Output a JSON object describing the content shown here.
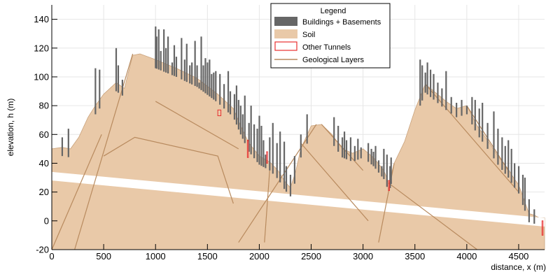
{
  "chart_data": {
    "type": "area",
    "xlabel": "distance, x (m)",
    "ylabel": "elevation, h (m)",
    "xlim": [
      0,
      4750
    ],
    "ylim": [
      -20,
      150
    ],
    "x_ticks": [
      0,
      500,
      1000,
      1500,
      2000,
      2500,
      3000,
      3500,
      4000,
      4500
    ],
    "y_ticks": [
      -20,
      0,
      20,
      40,
      60,
      80,
      100,
      120,
      140
    ],
    "legend": {
      "title": "Legend",
      "placement": "top-center",
      "entries": [
        "Buildings + Basements",
        "Soil",
        "Other Tunnels",
        "Geological Layers"
      ]
    },
    "colors": {
      "soil": "#e9c9a8",
      "geological_layers": "#b88a5e",
      "buildings": "#666666",
      "other_tunnels": "#e83030",
      "band": "#ffffff"
    },
    "series": [
      {
        "name": "Soil",
        "x": [
          0,
          100,
          180,
          260,
          350,
          420,
          500,
          620,
          700,
          780,
          850,
          1000,
          1200,
          1400,
          1600,
          1750,
          1820,
          1900,
          2000,
          2100,
          2180,
          2250,
          2300,
          2350,
          2400,
          2500,
          2600,
          2700,
          2800,
          2900,
          3000,
          3100,
          3200,
          3250,
          3300,
          3400,
          3500,
          3600,
          3700,
          3800,
          3900,
          4000,
          4100,
          4200,
          4300,
          4400,
          4450,
          4500,
          4550,
          4600,
          4650,
          4700,
          4750
        ],
        "y": [
          50,
          51,
          50,
          58,
          72,
          80,
          88,
          96,
          92,
          115,
          116,
          112,
          106,
          99,
          88,
          78,
          66,
          54,
          45,
          41,
          35,
          27,
          23,
          34,
          50,
          66,
          67,
          60,
          50,
          47,
          50,
          44,
          35,
          26,
          40,
          55,
          77,
          95,
          89,
          83,
          78,
          80,
          66,
          56,
          45,
          36,
          30,
          25,
          15,
          5,
          4,
          2,
          2
        ]
      },
      {
        "name": "Geological Layers",
        "lines": [
          {
            "x": [
              0,
              480
            ],
            "y": [
              -20,
              60
            ]
          },
          {
            "x": [
              220,
              780
            ],
            "y": [
              -20,
              116
            ]
          },
          {
            "x": [
              500,
              800,
              1600,
              1750
            ],
            "y": [
              45,
              58,
              45,
              12
            ]
          },
          {
            "x": [
              1000,
              1800
            ],
            "y": [
              83,
              50
            ]
          },
          {
            "x": [
              1800,
              2550
            ],
            "y": [
              -15,
              67
            ]
          },
          {
            "x": [
              2100,
              2050
            ],
            "y": [
              35,
              -15
            ]
          },
          {
            "x": [
              2400,
              3050
            ],
            "y": [
              54,
              0
            ]
          },
          {
            "x": [
              2600,
              3000
            ],
            "y": [
              67,
              35
            ]
          },
          {
            "x": [
              3300,
              3150
            ],
            "y": [
              40,
              -15
            ]
          },
          {
            "x": [
              3250,
              4100
            ],
            "y": [
              26,
              -20
            ]
          },
          {
            "x": [
              3600,
              4500
            ],
            "y": [
              95,
              20
            ]
          },
          {
            "x": [
              4000,
              4400
            ],
            "y": [
              80,
              35
            ]
          }
        ]
      }
    ],
    "white_band": {
      "x": [
        0,
        4750
      ],
      "y_top": [
        34,
        2
      ],
      "y_bottom": [
        28,
        -4
      ]
    },
    "other_tunnels": [
      {
        "x": 1600,
        "y": 73,
        "w": 30,
        "h": 4
      },
      {
        "x": 1885,
        "y": 44,
        "w": 8,
        "h": 12
      },
      {
        "x": 2070,
        "y": 40,
        "w": 8,
        "h": 8
      },
      {
        "x": 3245,
        "y": 21,
        "w": 8,
        "h": 7
      },
      {
        "x": 4725,
        "y": -10,
        "w": 8,
        "h": 10
      }
    ],
    "buildings": [
      {
        "x": 100,
        "top": 58
      },
      {
        "x": 160,
        "top": 64
      },
      {
        "x": 420,
        "top": 106
      },
      {
        "x": 460,
        "top": 105
      },
      {
        "x": 620,
        "top": 120
      },
      {
        "x": 640,
        "top": 108
      },
      {
        "x": 680,
        "top": 98
      },
      {
        "x": 1000,
        "top": 135
      },
      {
        "x": 1010,
        "top": 128
      },
      {
        "x": 1030,
        "top": 133
      },
      {
        "x": 1050,
        "top": 118
      },
      {
        "x": 1080,
        "top": 133
      },
      {
        "x": 1100,
        "top": 120
      },
      {
        "x": 1120,
        "top": 128
      },
      {
        "x": 1160,
        "top": 110
      },
      {
        "x": 1180,
        "top": 122
      },
      {
        "x": 1200,
        "top": 114
      },
      {
        "x": 1250,
        "top": 127
      },
      {
        "x": 1280,
        "top": 112
      },
      {
        "x": 1300,
        "top": 123
      },
      {
        "x": 1330,
        "top": 108
      },
      {
        "x": 1350,
        "top": 110
      },
      {
        "x": 1380,
        "top": 125
      },
      {
        "x": 1400,
        "top": 108
      },
      {
        "x": 1420,
        "top": 96
      },
      {
        "x": 1440,
        "top": 128
      },
      {
        "x": 1460,
        "top": 108
      },
      {
        "x": 1480,
        "top": 113
      },
      {
        "x": 1500,
        "top": 110
      },
      {
        "x": 1520,
        "top": 112
      },
      {
        "x": 1540,
        "top": 102
      },
      {
        "x": 1560,
        "top": 103
      },
      {
        "x": 1580,
        "top": 104
      },
      {
        "x": 1620,
        "top": 102
      },
      {
        "x": 1660,
        "top": 95
      },
      {
        "x": 1700,
        "top": 104
      },
      {
        "x": 1720,
        "top": 90
      },
      {
        "x": 1760,
        "top": 88
      },
      {
        "x": 1780,
        "top": 94
      },
      {
        "x": 1800,
        "top": 84
      },
      {
        "x": 1820,
        "top": 80
      },
      {
        "x": 1840,
        "top": 74
      },
      {
        "x": 1860,
        "top": 87
      },
      {
        "x": 1900,
        "top": 68
      },
      {
        "x": 1920,
        "top": 80
      },
      {
        "x": 1950,
        "top": 67
      },
      {
        "x": 1980,
        "top": 64
      },
      {
        "x": 2000,
        "top": 73
      },
      {
        "x": 2020,
        "top": 66
      },
      {
        "x": 2040,
        "top": 56
      },
      {
        "x": 2060,
        "top": 46
      },
      {
        "x": 2100,
        "top": 58
      },
      {
        "x": 2130,
        "top": 68
      },
      {
        "x": 2170,
        "top": 54
      },
      {
        "x": 2200,
        "top": 62
      },
      {
        "x": 2240,
        "top": 55
      },
      {
        "x": 2260,
        "top": 38
      },
      {
        "x": 2300,
        "top": 32
      },
      {
        "x": 2340,
        "top": 45
      },
      {
        "x": 2400,
        "top": 60
      },
      {
        "x": 2460,
        "top": 74
      },
      {
        "x": 2720,
        "top": 72
      },
      {
        "x": 2760,
        "top": 66
      },
      {
        "x": 2800,
        "top": 58
      },
      {
        "x": 2820,
        "top": 62
      },
      {
        "x": 2840,
        "top": 56
      },
      {
        "x": 2880,
        "top": 58
      },
      {
        "x": 2920,
        "top": 52
      },
      {
        "x": 2950,
        "top": 57
      },
      {
        "x": 2980,
        "top": 51
      },
      {
        "x": 3050,
        "top": 54
      },
      {
        "x": 3080,
        "top": 50
      },
      {
        "x": 3100,
        "top": 48
      },
      {
        "x": 3120,
        "top": 52
      },
      {
        "x": 3150,
        "top": 42
      },
      {
        "x": 3180,
        "top": 38
      },
      {
        "x": 3200,
        "top": 50
      },
      {
        "x": 3230,
        "top": 46
      },
      {
        "x": 3260,
        "top": 38
      },
      {
        "x": 3270,
        "top": 44
      },
      {
        "x": 3550,
        "top": 112
      },
      {
        "x": 3570,
        "top": 108
      },
      {
        "x": 3600,
        "top": 103
      },
      {
        "x": 3620,
        "top": 110
      },
      {
        "x": 3650,
        "top": 105
      },
      {
        "x": 3680,
        "top": 102
      },
      {
        "x": 3720,
        "top": 96
      },
      {
        "x": 3760,
        "top": 92
      },
      {
        "x": 3800,
        "top": 104
      },
      {
        "x": 3850,
        "top": 86
      },
      {
        "x": 3900,
        "top": 82
      },
      {
        "x": 3950,
        "top": 84
      },
      {
        "x": 4000,
        "top": 80
      },
      {
        "x": 4050,
        "top": 86
      },
      {
        "x": 4080,
        "top": 84
      },
      {
        "x": 4120,
        "top": 78
      },
      {
        "x": 4150,
        "top": 82
      },
      {
        "x": 4200,
        "top": 68
      },
      {
        "x": 4260,
        "top": 76
      },
      {
        "x": 4300,
        "top": 64
      },
      {
        "x": 4340,
        "top": 58
      },
      {
        "x": 4370,
        "top": 52
      },
      {
        "x": 4400,
        "top": 56
      },
      {
        "x": 4430,
        "top": 50
      },
      {
        "x": 4460,
        "top": 40
      },
      {
        "x": 4500,
        "top": 38
      },
      {
        "x": 4540,
        "top": 32
      },
      {
        "x": 4560,
        "top": 30
      },
      {
        "x": 4600,
        "top": 15
      },
      {
        "x": 4650,
        "top": 8
      }
    ]
  }
}
